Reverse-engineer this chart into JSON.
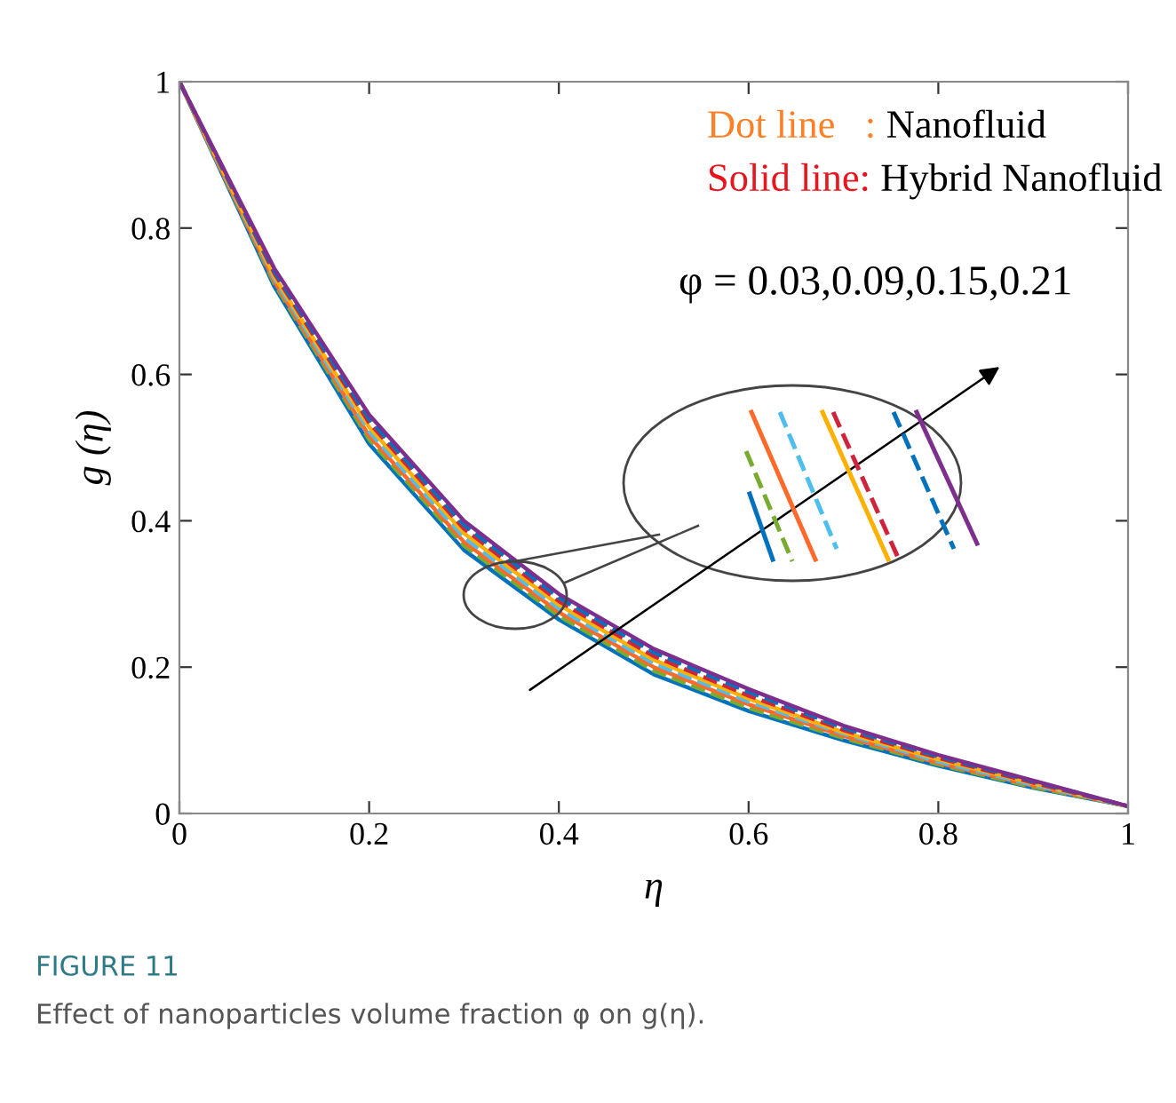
{
  "chart_data": {
    "type": "line",
    "xlabel": "η",
    "ylabel": "g (η)",
    "x": [
      0,
      0.1,
      0.2,
      0.3,
      0.4,
      0.5,
      0.6,
      0.7,
      0.8,
      0.9,
      1
    ],
    "series": [
      {
        "color": "#0072bd",
        "line_style": "solid",
        "values": [
          1,
          0.72,
          0.505,
          0.36,
          0.265,
          0.19,
          0.14,
          0.1,
          0.065,
          0.035,
          0.01
        ]
      },
      {
        "color": "#77ac30",
        "line_style": "dashed",
        "values": [
          1,
          0.724,
          0.511,
          0.366,
          0.27,
          0.195,
          0.144,
          0.103,
          0.067,
          0.036,
          0.01
        ]
      },
      {
        "color": "#ff6a2a",
        "line_style": "solid",
        "values": [
          1,
          0.727,
          0.516,
          0.371,
          0.275,
          0.2,
          0.149,
          0.106,
          0.069,
          0.038,
          0.01
        ]
      },
      {
        "color": "#4dbeee",
        "line_style": "dashed",
        "values": [
          1,
          0.731,
          0.522,
          0.377,
          0.28,
          0.205,
          0.153,
          0.109,
          0.071,
          0.039,
          0.01
        ]
      },
      {
        "color": "#ffb000",
        "line_style": "solid",
        "values": [
          1,
          0.734,
          0.528,
          0.383,
          0.285,
          0.21,
          0.157,
          0.111,
          0.074,
          0.041,
          0.01
        ]
      },
      {
        "color": "#d0243c",
        "line_style": "dashed",
        "values": [
          1,
          0.738,
          0.534,
          0.389,
          0.29,
          0.215,
          0.161,
          0.114,
          0.076,
          0.042,
          0.01
        ]
      },
      {
        "color": "#0072bd",
        "line_style": "dashed",
        "values": [
          1,
          0.741,
          0.539,
          0.394,
          0.295,
          0.22,
          0.166,
          0.117,
          0.078,
          0.044,
          0.01
        ]
      },
      {
        "color": "#7e2f8e",
        "line_style": "solid",
        "values": [
          1,
          0.745,
          0.545,
          0.4,
          0.3,
          0.225,
          0.17,
          0.12,
          0.08,
          0.045,
          0.01
        ]
      }
    ],
    "xlim": [
      0,
      1
    ],
    "ylim": [
      0,
      1
    ],
    "xticks": [
      0,
      0.2,
      0.4,
      0.6,
      0.8,
      1
    ],
    "yticks": [
      0,
      0.2,
      0.4,
      0.6,
      0.8,
      1
    ],
    "grid": false,
    "legend": false,
    "annotations": [
      "Dot line   : ",
      "Nanofluid",
      "Solid line: ",
      "Hybrid Nanofluid",
      "φ = 0.03,0.09,0.15,0.21",
      "FIGURE 11",
      "Effect of nanoparticles volume fraction φ on g(η)."
    ]
  }
}
